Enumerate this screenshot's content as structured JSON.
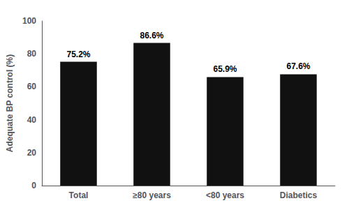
{
  "chart_data": {
    "type": "bar",
    "categories": [
      "Total",
      "≥80 years",
      "<80 years",
      "Diabetics"
    ],
    "values": [
      75.2,
      86.6,
      65.9,
      67.6
    ],
    "value_labels": [
      "75.2%",
      "86.6%",
      "65.9%",
      "67.6%"
    ],
    "data_labels": true,
    "color": "#111111",
    "ylabel": "Adequate BP control (%)",
    "ylim": [
      0,
      100
    ],
    "yticks": [
      0,
      20,
      40,
      60,
      80,
      100
    ],
    "grid": false
  }
}
